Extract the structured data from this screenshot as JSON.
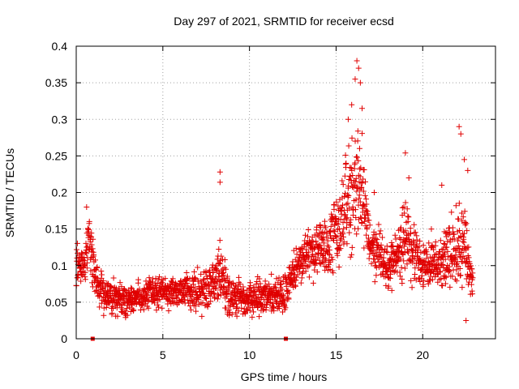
{
  "chart_data": {
    "type": "scatter",
    "title": "Day 297 of 2021, SRMTID for receiver ecsd",
    "xlabel": "GPS time / hours",
    "ylabel": "SRMTID / TECUs",
    "xlim": [
      0,
      24.2
    ],
    "ylim": [
      0,
      0.4
    ],
    "x_ticks": [
      0,
      5,
      10,
      15,
      20
    ],
    "x_tick_labels": [
      "0",
      "5",
      "10",
      "15",
      "20"
    ],
    "y_ticks": [
      0,
      0.05,
      0.1,
      0.15,
      0.2,
      0.25,
      0.3,
      0.35,
      0.4
    ],
    "y_tick_labels": [
      "0",
      "0.05",
      "0.1",
      "0.15",
      "0.2",
      "0.25",
      "0.3",
      "0.35",
      "0.4"
    ],
    "grid": true,
    "marker": "+",
    "color": "#e00000",
    "gap_markers_x": [
      0.95,
      12.1
    ],
    "envelope": [
      {
        "x": 0.0,
        "lo": 0.06,
        "hi": 0.14
      },
      {
        "x": 0.3,
        "lo": 0.05,
        "hi": 0.13
      },
      {
        "x": 0.5,
        "lo": 0.06,
        "hi": 0.15
      },
      {
        "x": 0.7,
        "lo": 0.09,
        "hi": 0.18
      },
      {
        "x": 0.9,
        "lo": 0.06,
        "hi": 0.17
      },
      {
        "x": 1.2,
        "lo": 0.03,
        "hi": 0.11
      },
      {
        "x": 2.0,
        "lo": 0.02,
        "hi": 0.09
      },
      {
        "x": 3.0,
        "lo": 0.025,
        "hi": 0.08
      },
      {
        "x": 4.0,
        "lo": 0.03,
        "hi": 0.09
      },
      {
        "x": 5.0,
        "lo": 0.03,
        "hi": 0.095
      },
      {
        "x": 6.0,
        "lo": 0.03,
        "hi": 0.1
      },
      {
        "x": 7.0,
        "lo": 0.025,
        "hi": 0.1
      },
      {
        "x": 8.0,
        "lo": 0.025,
        "hi": 0.12
      },
      {
        "x": 8.3,
        "lo": 0.03,
        "hi": 0.16
      },
      {
        "x": 8.8,
        "lo": 0.02,
        "hi": 0.09
      },
      {
        "x": 10.0,
        "lo": 0.02,
        "hi": 0.09
      },
      {
        "x": 11.0,
        "lo": 0.025,
        "hi": 0.09
      },
      {
        "x": 12.0,
        "lo": 0.02,
        "hi": 0.1
      },
      {
        "x": 12.5,
        "lo": 0.06,
        "hi": 0.12
      },
      {
        "x": 13.5,
        "lo": 0.07,
        "hi": 0.17
      },
      {
        "x": 14.5,
        "lo": 0.06,
        "hi": 0.18
      },
      {
        "x": 15.3,
        "lo": 0.07,
        "hi": 0.25
      },
      {
        "x": 16.0,
        "lo": 0.08,
        "hi": 0.33
      },
      {
        "x": 16.5,
        "lo": 0.1,
        "hi": 0.3
      },
      {
        "x": 17.0,
        "lo": 0.08,
        "hi": 0.18
      },
      {
        "x": 18.0,
        "lo": 0.05,
        "hi": 0.14
      },
      {
        "x": 19.0,
        "lo": 0.06,
        "hi": 0.21
      },
      {
        "x": 20.0,
        "lo": 0.06,
        "hi": 0.14
      },
      {
        "x": 21.0,
        "lo": 0.05,
        "hi": 0.15
      },
      {
        "x": 22.0,
        "lo": 0.04,
        "hi": 0.22
      },
      {
        "x": 22.5,
        "lo": 0.04,
        "hi": 0.2
      },
      {
        "x": 22.9,
        "lo": 0.05,
        "hi": 0.1
      }
    ],
    "peaks": [
      {
        "x": 0.6,
        "y": 0.18
      },
      {
        "x": 8.3,
        "y": 0.228
      },
      {
        "x": 8.3,
        "y": 0.214
      },
      {
        "x": 16.2,
        "y": 0.38
      },
      {
        "x": 16.3,
        "y": 0.37
      },
      {
        "x": 16.1,
        "y": 0.355
      },
      {
        "x": 16.4,
        "y": 0.35
      },
      {
        "x": 15.9,
        "y": 0.32
      },
      {
        "x": 16.5,
        "y": 0.315
      },
      {
        "x": 15.7,
        "y": 0.3
      },
      {
        "x": 17.2,
        "y": 0.2
      },
      {
        "x": 19.0,
        "y": 0.254
      },
      {
        "x": 19.2,
        "y": 0.22
      },
      {
        "x": 22.1,
        "y": 0.29
      },
      {
        "x": 22.2,
        "y": 0.28
      },
      {
        "x": 22.4,
        "y": 0.245
      },
      {
        "x": 22.6,
        "y": 0.23
      },
      {
        "x": 22.5,
        "y": 0.025
      },
      {
        "x": 20.5,
        "y": 0.15
      },
      {
        "x": 21.1,
        "y": 0.21
      }
    ]
  }
}
